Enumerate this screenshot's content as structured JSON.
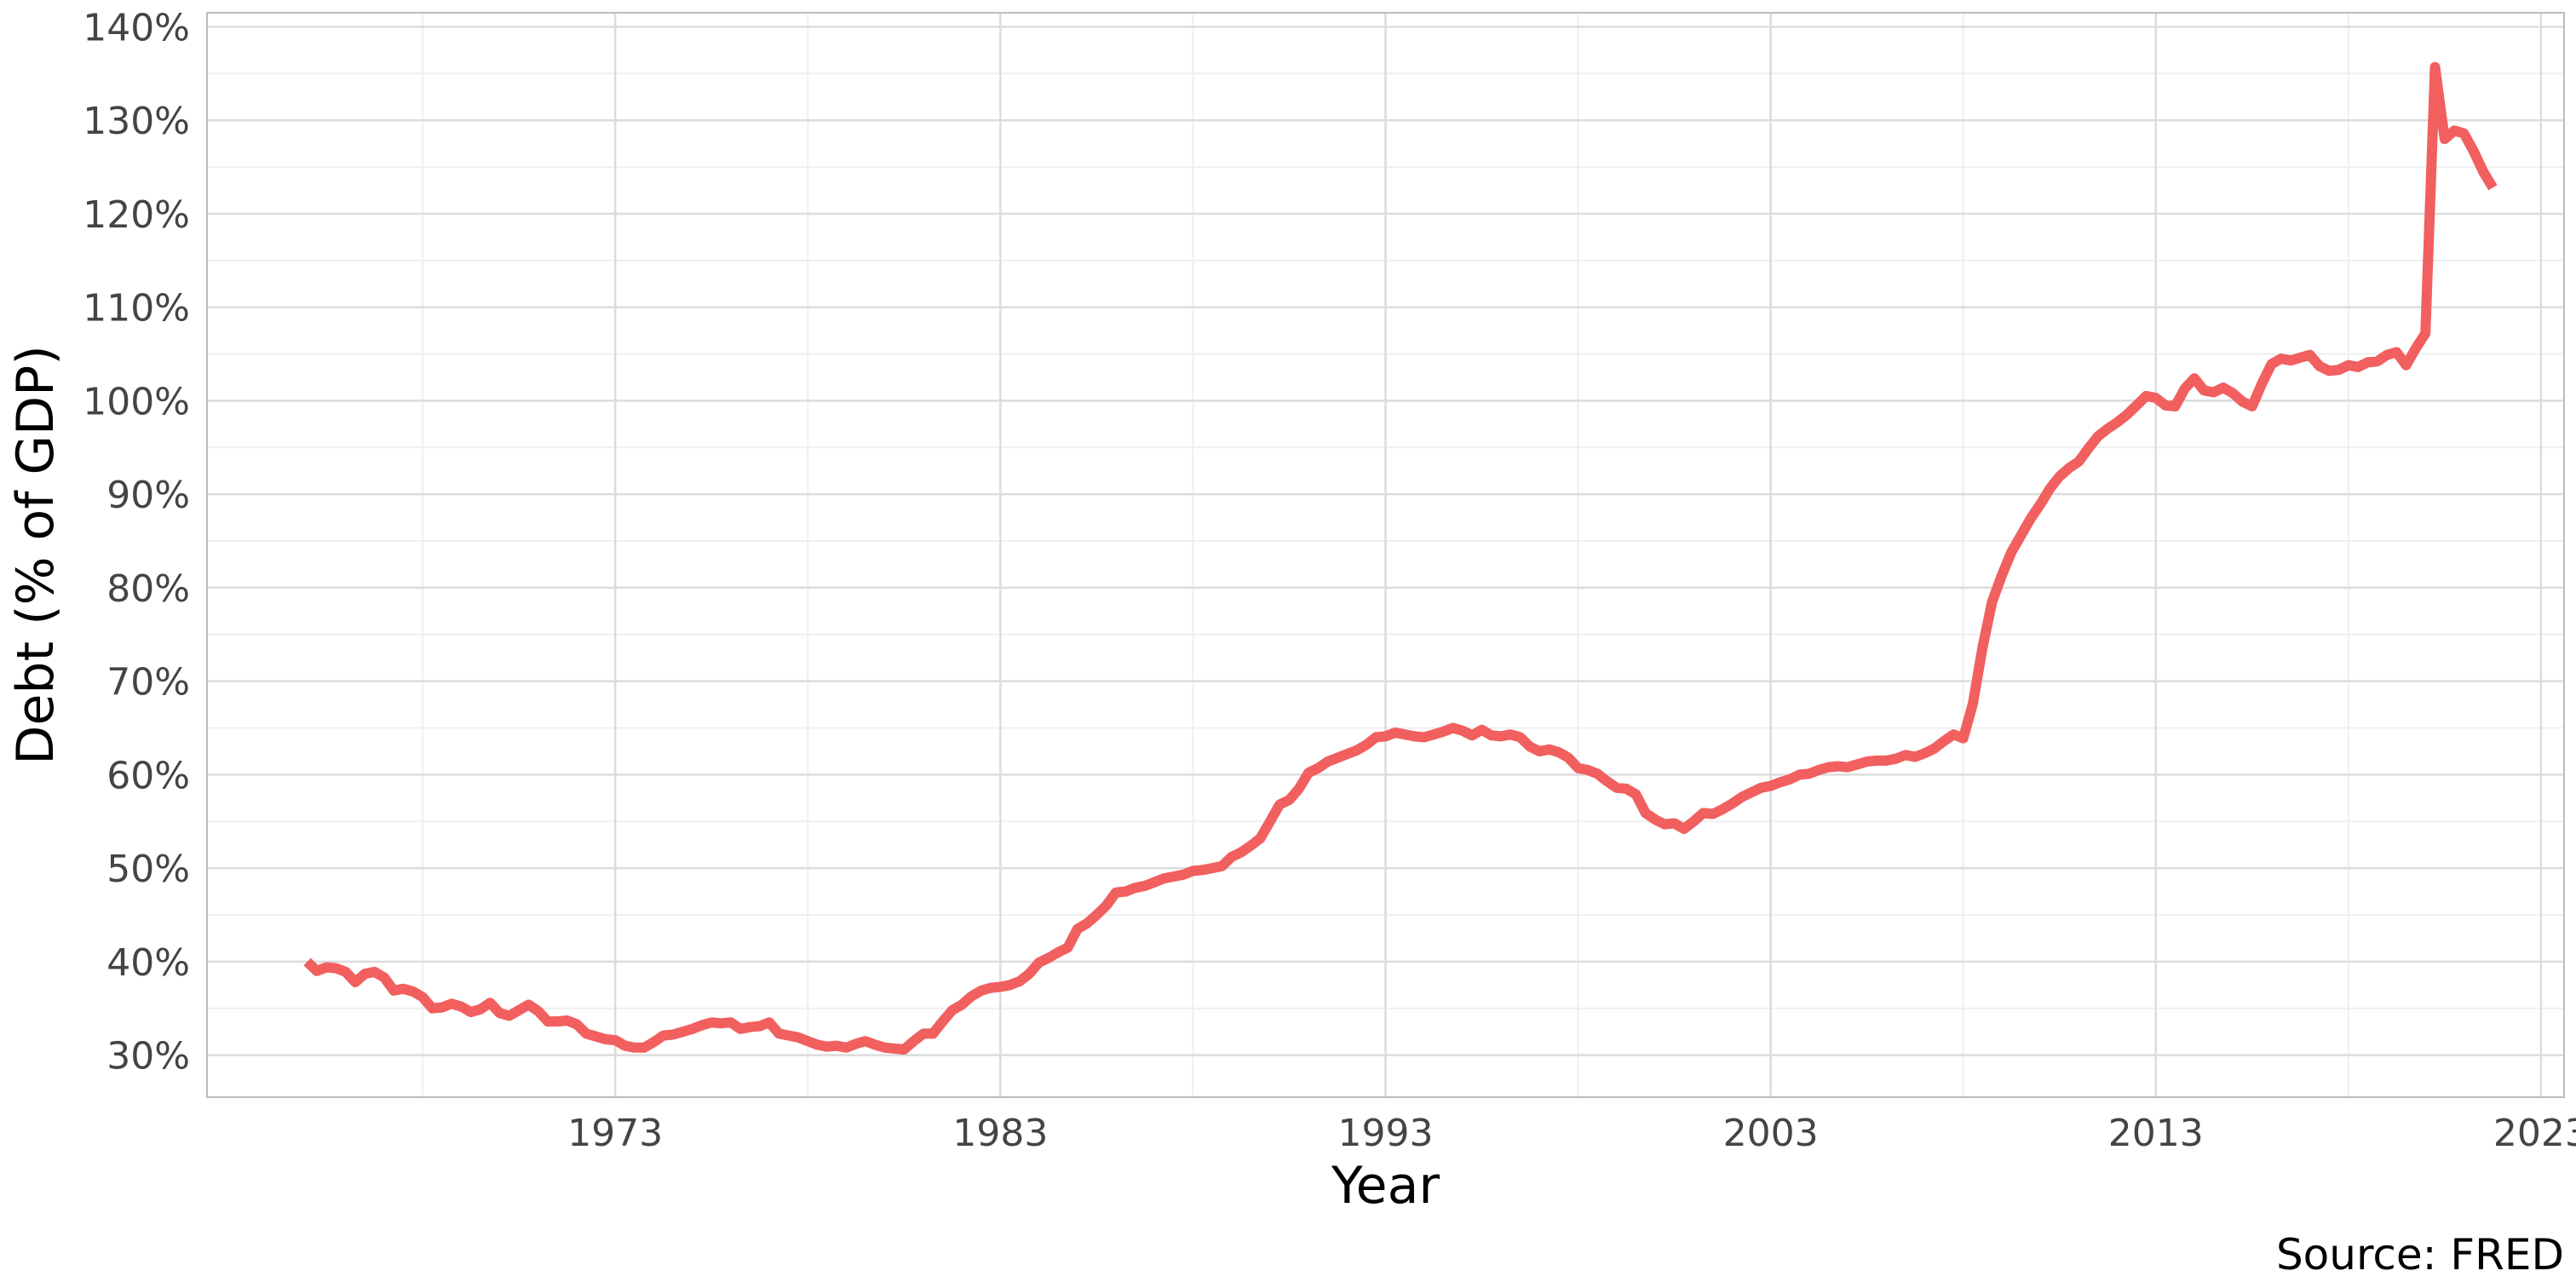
{
  "chart_data": {
    "type": "line",
    "title": "",
    "xlabel": "Year",
    "ylabel": "Debt (% of GDP)",
    "caption": "Source: FRED",
    "xlim": [
      1962.4,
      2023.6
    ],
    "ylim": [
      25.5,
      141.5
    ],
    "x_ticks": [
      1973,
      1983,
      1993,
      2003,
      2013,
      2023
    ],
    "y_ticks": [
      30,
      40,
      50,
      60,
      70,
      80,
      90,
      100,
      110,
      120,
      130,
      140
    ],
    "y_tick_labels": [
      "30%",
      "40%",
      "50%",
      "60%",
      "70%",
      "80%",
      "90%",
      "100%",
      "110%",
      "120%",
      "130%",
      "140%"
    ],
    "grid": true,
    "legend": "none",
    "colors": {
      "line": "#F15F5F",
      "grid_major": "#DCDCDC",
      "grid_minor": "#EFEFEF",
      "border": "#BDBDBD"
    },
    "series": [
      {
        "x": [
          1965.0,
          1965.25,
          1965.5,
          1965.75,
          1966.0,
          1966.25,
          1966.5,
          1966.75,
          1967.0,
          1967.25,
          1967.5,
          1967.75,
          1968.0,
          1968.25,
          1968.5,
          1968.75,
          1969.0,
          1969.25,
          1969.5,
          1969.75,
          1970.0,
          1970.25,
          1970.5,
          1970.75,
          1971.0,
          1971.25,
          1971.5,
          1971.75,
          1972.0,
          1972.25,
          1972.5,
          1972.75,
          1973.0,
          1973.25,
          1973.5,
          1973.75,
          1974.0,
          1974.25,
          1974.5,
          1974.75,
          1975.0,
          1975.25,
          1975.5,
          1975.75,
          1976.0,
          1976.25,
          1976.5,
          1976.75,
          1977.0,
          1977.25,
          1977.5,
          1977.75,
          1978.0,
          1978.25,
          1978.5,
          1978.75,
          1979.0,
          1979.25,
          1979.5,
          1979.75,
          1980.0,
          1980.25,
          1980.5,
          1980.75,
          1981.0,
          1981.25,
          1981.5,
          1981.75,
          1982.0,
          1982.25,
          1982.5,
          1982.75,
          1983.0,
          1983.25,
          1983.5,
          1983.75,
          1984.0,
          1984.25,
          1984.5,
          1984.75,
          1985.0,
          1985.25,
          1985.5,
          1985.75,
          1986.0,
          1986.25,
          1986.5,
          1986.75,
          1987.0,
          1987.25,
          1987.5,
          1987.75,
          1988.0,
          1988.25,
          1988.5,
          1988.75,
          1989.0,
          1989.25,
          1989.5,
          1989.75,
          1990.0,
          1990.25,
          1990.5,
          1990.75,
          1991.0,
          1991.25,
          1991.5,
          1991.75,
          1992.0,
          1992.25,
          1992.5,
          1992.75,
          1993.0,
          1993.25,
          1993.5,
          1993.75,
          1994.0,
          1994.25,
          1994.5,
          1994.75,
          1995.0,
          1995.25,
          1995.5,
          1995.75,
          1996.0,
          1996.25,
          1996.5,
          1996.75,
          1997.0,
          1997.25,
          1997.5,
          1997.75,
          1998.0,
          1998.25,
          1998.5,
          1998.75,
          1999.0,
          1999.25,
          1999.5,
          1999.75,
          2000.0,
          2000.25,
          2000.5,
          2000.75,
          2001.0,
          2001.25,
          2001.5,
          2001.75,
          2002.0,
          2002.25,
          2002.5,
          2002.75,
          2003.0,
          2003.25,
          2003.5,
          2003.75,
          2004.0,
          2004.25,
          2004.5,
          2004.75,
          2005.0,
          2005.25,
          2005.5,
          2005.75,
          2006.0,
          2006.25,
          2006.5,
          2006.75,
          2007.0,
          2007.25,
          2007.5,
          2007.75,
          2008.0,
          2008.25,
          2008.5,
          2008.75,
          2009.0,
          2009.25,
          2009.5,
          2009.75,
          2010.0,
          2010.25,
          2010.5,
          2010.75,
          2011.0,
          2011.25,
          2011.5,
          2011.75,
          2012.0,
          2012.25,
          2012.5,
          2012.75,
          2013.0,
          2013.25,
          2013.5,
          2013.75,
          2014.0,
          2014.25,
          2014.5,
          2014.75,
          2015.0,
          2015.25,
          2015.5,
          2015.75,
          2016.0,
          2016.25,
          2016.5,
          2016.75,
          2017.0,
          2017.25,
          2017.5,
          2017.75,
          2018.0,
          2018.25,
          2018.5,
          2018.75,
          2019.0,
          2019.25,
          2019.5,
          2019.75,
          2020.0,
          2020.25,
          2020.5,
          2020.75,
          2021.0,
          2021.25,
          2021.5,
          2021.75
        ],
        "y": [
          40.0,
          39.0,
          39.4,
          39.3,
          38.9,
          37.8,
          38.7,
          38.9,
          38.3,
          36.9,
          37.1,
          36.8,
          36.2,
          35.0,
          35.1,
          35.5,
          35.2,
          34.6,
          34.9,
          35.6,
          34.5,
          34.2,
          34.8,
          35.4,
          34.7,
          33.6,
          33.6,
          33.7,
          33.3,
          32.3,
          32.0,
          31.7,
          31.6,
          31.0,
          30.8,
          30.8,
          31.4,
          32.1,
          32.2,
          32.5,
          32.8,
          33.2,
          33.5,
          33.4,
          33.5,
          32.8,
          33.0,
          33.1,
          33.5,
          32.3,
          32.1,
          31.9,
          31.5,
          31.1,
          30.9,
          31.0,
          30.8,
          31.2,
          31.5,
          31.1,
          30.8,
          30.7,
          30.6,
          31.5,
          32.3,
          32.3,
          33.6,
          34.8,
          35.4,
          36.3,
          36.9,
          37.2,
          37.3,
          37.5,
          37.9,
          38.7,
          39.9,
          40.4,
          41.0,
          41.5,
          43.5,
          44.1,
          45.0,
          46.0,
          47.4,
          47.5,
          47.9,
          48.1,
          48.5,
          48.9,
          49.1,
          49.3,
          49.7,
          49.8,
          50.0,
          50.2,
          51.2,
          51.7,
          52.4,
          53.2,
          55.0,
          56.8,
          57.3,
          58.5,
          60.2,
          60.7,
          61.4,
          61.8,
          62.2,
          62.6,
          63.2,
          64.0,
          64.1,
          64.5,
          64.3,
          64.1,
          64.0,
          64.3,
          64.6,
          65.0,
          64.7,
          64.2,
          64.8,
          64.2,
          64.1,
          64.3,
          64.0,
          63.0,
          62.5,
          62.7,
          62.4,
          61.8,
          60.7,
          60.5,
          60.1,
          59.3,
          58.6,
          58.5,
          57.9,
          55.9,
          55.2,
          54.7,
          54.8,
          54.2,
          55.0,
          55.9,
          55.8,
          56.3,
          56.9,
          57.6,
          58.1,
          58.6,
          58.8,
          59.2,
          59.5,
          60.0,
          60.1,
          60.5,
          60.8,
          60.9,
          60.8,
          61.1,
          61.4,
          61.5,
          61.5,
          61.7,
          62.1,
          61.9,
          62.3,
          62.8,
          63.6,
          64.3,
          63.9,
          67.6,
          73.6,
          78.5,
          81.3,
          83.8,
          85.6,
          87.4,
          88.9,
          90.6,
          91.9,
          92.8,
          93.5,
          94.9,
          96.2,
          97.0,
          97.7,
          98.5,
          99.5,
          100.5,
          100.3,
          99.5,
          99.4,
          101.3,
          102.4,
          101.1,
          100.9,
          101.4,
          100.8,
          99.9,
          99.4,
          101.8,
          103.9,
          104.5,
          104.3,
          104.6,
          104.9,
          103.7,
          103.2,
          103.3,
          103.8,
          103.6,
          104.1,
          104.2,
          104.9,
          105.2,
          103.8,
          105.6,
          107.2,
          135.7,
          128.0,
          128.9,
          128.6,
          126.7,
          124.5,
          122.8
        ]
      }
    ]
  }
}
